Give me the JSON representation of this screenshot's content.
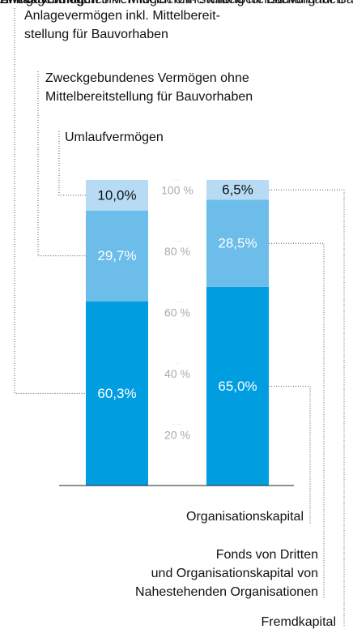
{
  "chart_data": {
    "type": "bar",
    "stacked": true,
    "categories": [
      null,
      null
    ],
    "ylim": [
      0,
      100
    ],
    "yticks": [
      {
        "value": 20,
        "label": "20 %"
      },
      {
        "value": 40,
        "label": "40 %"
      },
      {
        "value": 60,
        "label": "60 %"
      },
      {
        "value": 80,
        "label": "80 %"
      },
      {
        "value": 100,
        "label": "100 %"
      }
    ],
    "series": [
      {
        "name": "Anlagevermögen inkl. Mittelbereit-\nstellung für Bauvorhaben",
        "color": "#009ee0",
        "values": [
          60.3,
          null
        ],
        "value_labels": [
          "60,3%",
          null
        ]
      },
      {
        "name": "Zweckgebundenes Vermögen ohne\nMittelbereitstellung für Bauvorhaben",
        "color": "#6cbdea",
        "values": [
          29.7,
          null
        ],
        "value_labels": [
          "29,7%",
          null
        ]
      },
      {
        "name": "Umlaufvermögen",
        "color": "#b7dbf4",
        "values": [
          10.0,
          null
        ],
        "value_labels": [
          "10,0%",
          null
        ]
      },
      {
        "name": "Organisationskapital",
        "color": "#009ee0",
        "values": [
          null,
          65.0
        ],
        "value_labels": [
          null,
          "65,0%"
        ]
      },
      {
        "name": "Fonds von Dritten\nund Organisationskapital von\nNahestehenden Organisationen",
        "color": "#6cbdea",
        "values": [
          null,
          28.5
        ],
        "value_labels": [
          null,
          "28,5%"
        ]
      },
      {
        "name": "Fremdkapital",
        "color": "#b7dbf4",
        "values": [
          null,
          6.5
        ],
        "value_labels": [
          null,
          "6,5%"
        ]
      }
    ]
  }
}
